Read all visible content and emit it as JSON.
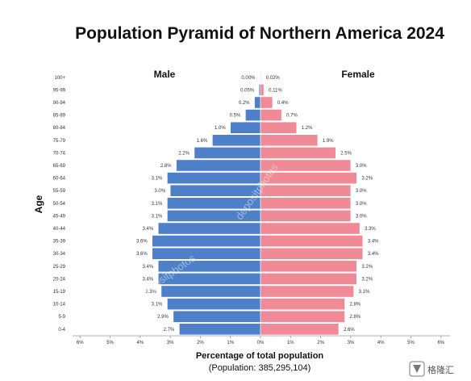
{
  "chart_data": {
    "type": "bar",
    "title": "Population Pyramid of Northern America 2024",
    "xlabel": "Percentage of total population",
    "xlabel_sub": "(Population: 385,295,104)",
    "ylabel": "Age",
    "left_label": "Male",
    "right_label": "Female",
    "xlim": [
      -6,
      6
    ],
    "x_ticks": [
      "6%",
      "5%",
      "4%",
      "3%",
      "2%",
      "1%",
      "0%",
      "1%",
      "2%",
      "3%",
      "4%",
      "5%",
      "6%"
    ],
    "categories": [
      "100+",
      "95-99",
      "90-94",
      "85-89",
      "80-84",
      "75-79",
      "70-74",
      "65-69",
      "60-64",
      "55-59",
      "50-54",
      "45-49",
      "40-44",
      "35-39",
      "30-34",
      "25-29",
      "20-24",
      "15-19",
      "10-14",
      "5-9",
      "0-4"
    ],
    "series": [
      {
        "name": "Male",
        "color": "#4e7fc9",
        "values": [
          0.0,
          0.05,
          0.2,
          0.5,
          1.0,
          1.6,
          2.2,
          2.8,
          3.1,
          3.0,
          3.1,
          3.1,
          3.4,
          3.6,
          3.6,
          3.4,
          3.4,
          3.3,
          3.1,
          2.9,
          2.7
        ],
        "labels": [
          "0.00%",
          "0.05%",
          "0.2%",
          "0.5%",
          "1.0%",
          "1.6%",
          "2.2%",
          "2.8%",
          "3.1%",
          "3.0%",
          "3.1%",
          "3.1%",
          "3.4%",
          "3.6%",
          "3.6%",
          "3.4%",
          "3.4%",
          "3.3%",
          "3.1%",
          "2.9%",
          "2.7%"
        ]
      },
      {
        "name": "Female",
        "color": "#f08a97",
        "values": [
          0.02,
          0.11,
          0.4,
          0.7,
          1.2,
          1.9,
          2.5,
          3.0,
          3.2,
          3.0,
          3.0,
          3.0,
          3.3,
          3.4,
          3.4,
          3.2,
          3.2,
          3.1,
          2.8,
          2.8,
          2.6
        ],
        "labels": [
          "0.02%",
          "0.11%",
          "0.4%",
          "0.7%",
          "1.2%",
          "1.9%",
          "2.5%",
          "3.0%",
          "3.2%",
          "3.0%",
          "3.0%",
          "3.0%",
          "3.3%",
          "3.4%",
          "3.4%",
          "3.2%",
          "3.2%",
          "3.1%",
          "2.8%",
          "2.8%",
          "2.6%"
        ]
      }
    ],
    "grid": false,
    "watermarks": [
      "depositphotos",
      "depositphotos"
    ],
    "logo": {
      "text": "格隆汇",
      "icon": "gelonghui-logo-icon"
    }
  }
}
